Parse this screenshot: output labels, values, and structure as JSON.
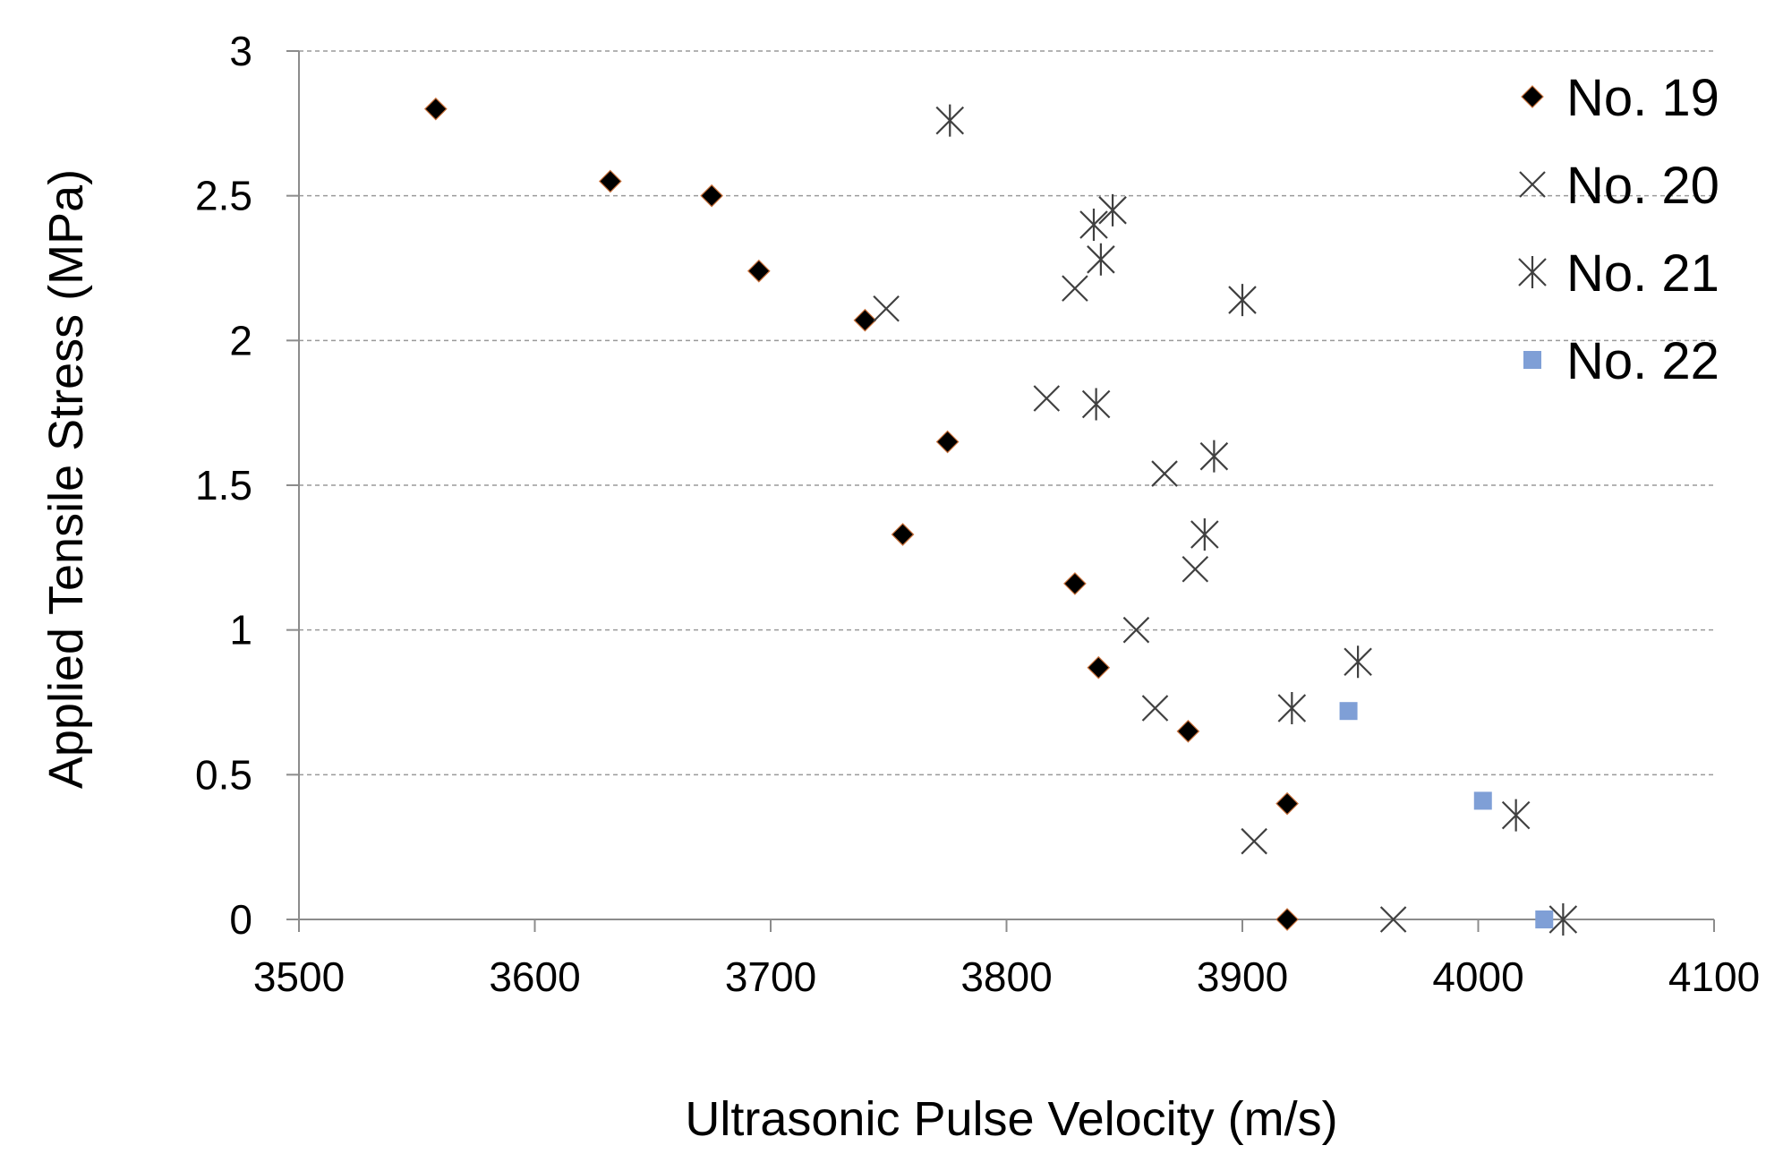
{
  "chart_data": {
    "type": "scatter",
    "title": "",
    "xlabel": "Ultrasonic Pulse Velocity (m/s)",
    "ylabel": "Applied Tensile Stress (MPa)",
    "xlim": [
      3500,
      4100
    ],
    "ylim": [
      0,
      3
    ],
    "xticks": [
      3500,
      3600,
      3700,
      3800,
      3900,
      4000,
      4100
    ],
    "yticks": [
      0,
      0.5,
      1,
      1.5,
      2,
      2.5,
      3
    ],
    "xtick_labels": [
      "3500",
      "3600",
      "3700",
      "3800",
      "3900",
      "4000",
      "4100"
    ],
    "ytick_labels": [
      "0",
      "0.5",
      "1",
      "1.5",
      "2",
      "2.5",
      "3"
    ],
    "grid": "horizontal-dashed",
    "legend_position": "top-right",
    "series": [
      {
        "name": "No. 19",
        "marker": "diamond",
        "color": "#000000",
        "x": [
          3558,
          3632,
          3675,
          3695,
          3740,
          3756,
          3775,
          3829,
          3839,
          3877,
          3919,
          3919
        ],
        "y": [
          2.8,
          2.55,
          2.5,
          2.24,
          2.07,
          1.33,
          1.65,
          1.16,
          0.87,
          0.65,
          0.4,
          0.0
        ]
      },
      {
        "name": "No. 20",
        "marker": "x",
        "color": "#404040",
        "x": [
          3749,
          3817,
          3829,
          3867,
          3880,
          3855,
          3863,
          3905,
          3964
        ],
        "y": [
          2.11,
          1.8,
          2.18,
          1.54,
          1.21,
          1.0,
          0.73,
          0.27,
          0.0
        ]
      },
      {
        "name": "No. 21",
        "marker": "asterisk",
        "color": "#404040",
        "x": [
          3776,
          3837,
          3845,
          3840,
          3838,
          3900,
          3888,
          3884,
          3949,
          3921,
          4016,
          4036
        ],
        "y": [
          2.76,
          2.4,
          2.45,
          2.28,
          1.78,
          2.14,
          1.6,
          1.33,
          0.89,
          0.73,
          0.36,
          0.0
        ]
      },
      {
        "name": "No. 22",
        "marker": "square",
        "color": "#7f9fd6",
        "x": [
          3945,
          4002,
          4028
        ],
        "y": [
          0.72,
          0.41,
          0.0
        ]
      }
    ]
  }
}
